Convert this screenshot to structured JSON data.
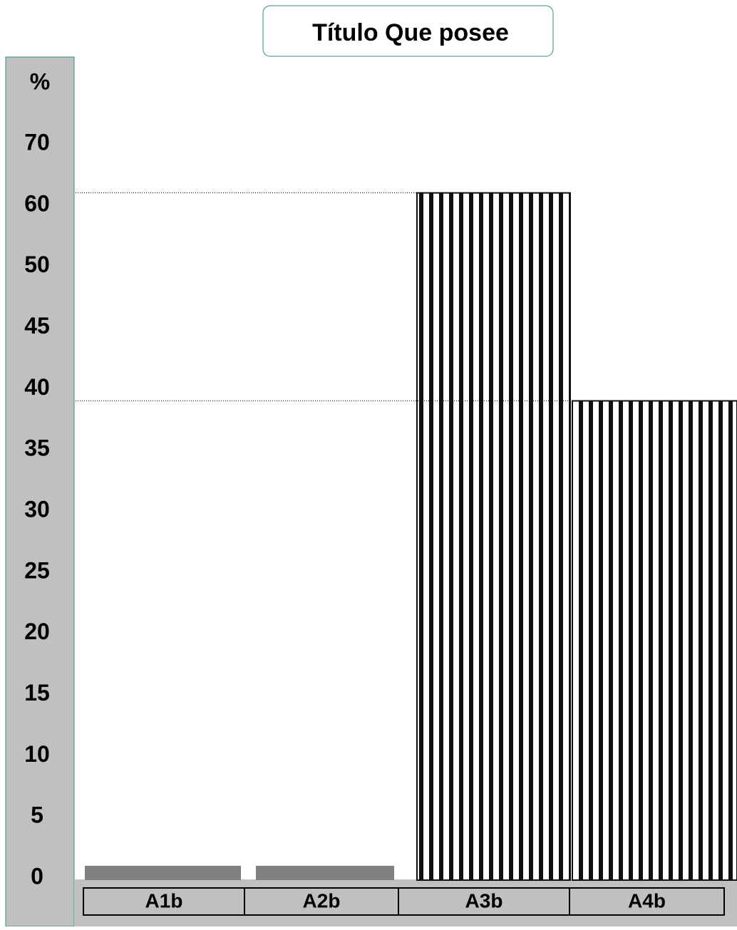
{
  "chart_data": {
    "type": "bar",
    "title": "Título Que posee",
    "y_label": "%",
    "categories": [
      "A1b",
      "A2b",
      "A3b",
      "A4b"
    ],
    "values": [
      1,
      1,
      62,
      39
    ],
    "colors": [
      "#808080",
      "#808080",
      "#111111",
      "#111111"
    ],
    "ylim": [
      0,
      70
    ],
    "yticks": [
      0,
      5,
      10,
      15,
      20,
      25,
      30,
      35,
      40,
      45,
      50,
      60,
      70
    ],
    "grid": false
  }
}
